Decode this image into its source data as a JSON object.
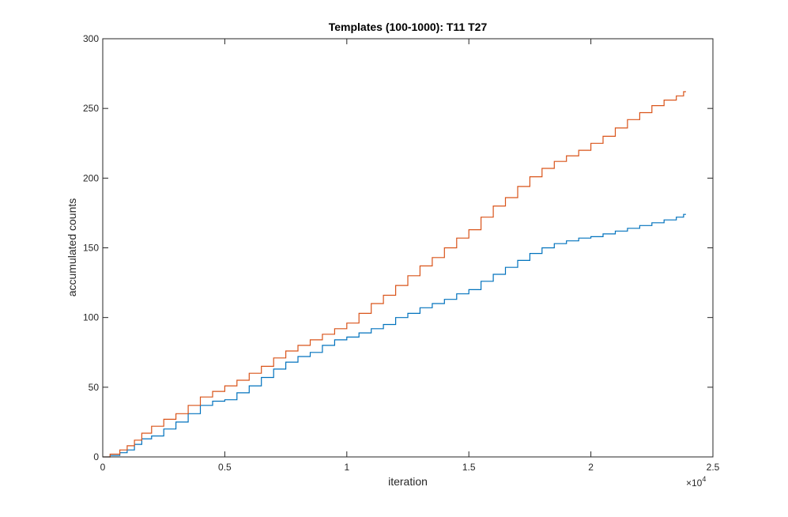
{
  "chart_data": {
    "type": "line",
    "title": "Templates (100-1000): T11 T27",
    "xlabel": "iteration",
    "ylabel": "accumulated counts",
    "xlim": [
      0,
      2.5
    ],
    "ylim": [
      0,
      300
    ],
    "x_ticks": [
      0,
      0.5,
      1,
      1.5,
      2,
      2.5
    ],
    "x_tick_labels": [
      "0",
      "0.5",
      "1",
      "1.5",
      "2",
      "2.5"
    ],
    "y_ticks": [
      0,
      50,
      100,
      150,
      200,
      250,
      300
    ],
    "y_tick_labels": [
      "0",
      "50",
      "100",
      "150",
      "200",
      "250",
      "300"
    ],
    "x_multiplier": {
      "base": "×10",
      "exponent": "4"
    },
    "grid": false,
    "series": [
      {
        "color": "#0072BD",
        "points": [
          [
            0,
            0
          ],
          [
            0.03,
            1
          ],
          [
            0.07,
            3
          ],
          [
            0.1,
            5
          ],
          [
            0.13,
            9
          ],
          [
            0.16,
            13
          ],
          [
            0.2,
            15
          ],
          [
            0.25,
            20
          ],
          [
            0.3,
            25
          ],
          [
            0.35,
            31
          ],
          [
            0.4,
            37
          ],
          [
            0.45,
            40
          ],
          [
            0.5,
            41
          ],
          [
            0.55,
            46
          ],
          [
            0.6,
            51
          ],
          [
            0.65,
            57
          ],
          [
            0.7,
            63
          ],
          [
            0.75,
            68
          ],
          [
            0.8,
            72
          ],
          [
            0.85,
            75
          ],
          [
            0.9,
            80
          ],
          [
            0.95,
            84
          ],
          [
            1.0,
            86
          ],
          [
            1.05,
            89
          ],
          [
            1.1,
            92
          ],
          [
            1.15,
            95
          ],
          [
            1.2,
            100
          ],
          [
            1.25,
            103
          ],
          [
            1.3,
            107
          ],
          [
            1.35,
            110
          ],
          [
            1.4,
            113
          ],
          [
            1.45,
            117
          ],
          [
            1.5,
            120
          ],
          [
            1.55,
            126
          ],
          [
            1.6,
            131
          ],
          [
            1.65,
            136
          ],
          [
            1.7,
            141
          ],
          [
            1.75,
            146
          ],
          [
            1.8,
            150
          ],
          [
            1.85,
            153
          ],
          [
            1.9,
            155
          ],
          [
            1.95,
            157
          ],
          [
            2.0,
            158
          ],
          [
            2.05,
            160
          ],
          [
            2.1,
            162
          ],
          [
            2.15,
            164
          ],
          [
            2.2,
            166
          ],
          [
            2.25,
            168
          ],
          [
            2.3,
            170
          ],
          [
            2.35,
            172
          ],
          [
            2.38,
            174
          ]
        ]
      },
      {
        "color": "#D95319",
        "points": [
          [
            0,
            0
          ],
          [
            0.03,
            2
          ],
          [
            0.07,
            5
          ],
          [
            0.1,
            8
          ],
          [
            0.13,
            12
          ],
          [
            0.16,
            17
          ],
          [
            0.2,
            22
          ],
          [
            0.25,
            27
          ],
          [
            0.3,
            31
          ],
          [
            0.35,
            37
          ],
          [
            0.4,
            43
          ],
          [
            0.45,
            47
          ],
          [
            0.5,
            51
          ],
          [
            0.55,
            55
          ],
          [
            0.6,
            60
          ],
          [
            0.65,
            65
          ],
          [
            0.7,
            71
          ],
          [
            0.75,
            76
          ],
          [
            0.8,
            80
          ],
          [
            0.85,
            84
          ],
          [
            0.9,
            88
          ],
          [
            0.95,
            92
          ],
          [
            1.0,
            96
          ],
          [
            1.05,
            103
          ],
          [
            1.1,
            110
          ],
          [
            1.15,
            116
          ],
          [
            1.2,
            123
          ],
          [
            1.25,
            130
          ],
          [
            1.3,
            137
          ],
          [
            1.35,
            143
          ],
          [
            1.4,
            150
          ],
          [
            1.45,
            157
          ],
          [
            1.5,
            163
          ],
          [
            1.55,
            172
          ],
          [
            1.6,
            180
          ],
          [
            1.65,
            186
          ],
          [
            1.7,
            194
          ],
          [
            1.75,
            201
          ],
          [
            1.8,
            207
          ],
          [
            1.85,
            212
          ],
          [
            1.9,
            216
          ],
          [
            1.95,
            220
          ],
          [
            2.0,
            225
          ],
          [
            2.05,
            230
          ],
          [
            2.1,
            236
          ],
          [
            2.15,
            242
          ],
          [
            2.2,
            247
          ],
          [
            2.25,
            252
          ],
          [
            2.3,
            256
          ],
          [
            2.35,
            259
          ],
          [
            2.38,
            262
          ]
        ]
      }
    ]
  }
}
